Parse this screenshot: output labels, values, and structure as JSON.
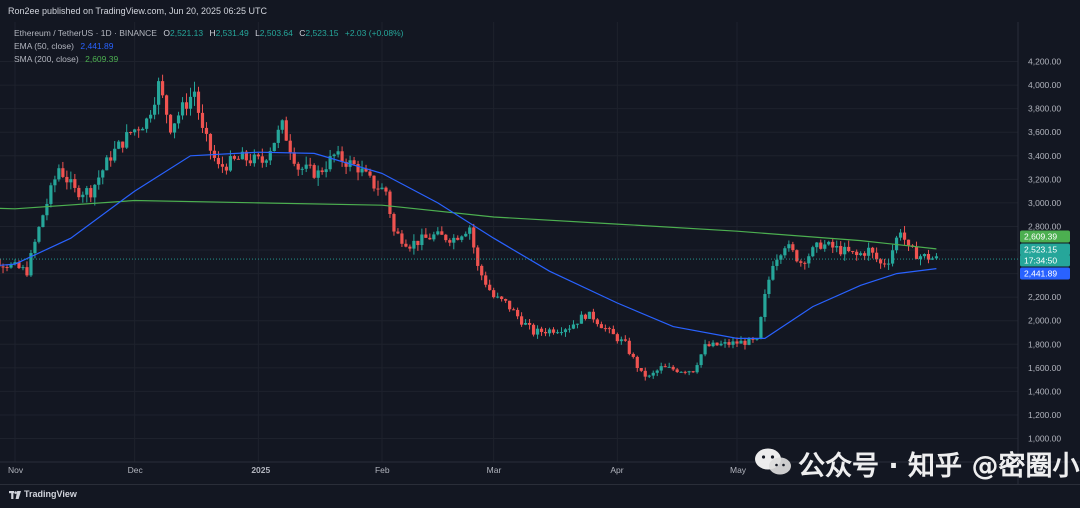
{
  "header": {
    "published": "Ron2ee published on TradingView.com, Jun 20, 2025 06:25 UTC"
  },
  "legend": {
    "symbol": "Ethereum / TetherUS · 1D · BINANCE",
    "o_label": "O",
    "o": "2,521.13",
    "h_label": "H",
    "h": "2,531.49",
    "l_label": "L",
    "l": "2,503.64",
    "c_label": "C",
    "c": "2,523.15",
    "change": "+2.03 (+0.08%)",
    "ema_label": "EMA (50, close)",
    "ema_value": "2,441.89",
    "sma_label": "SMA (200, close)",
    "sma_value": "2,609.39"
  },
  "footer": {
    "brand": "TradingView"
  },
  "watermark": {
    "text": "公众号 · 知乎 @密圈小Q"
  },
  "colors": {
    "up": "#26a69a",
    "down": "#ef5350",
    "ema": "#2962ff",
    "sma": "#4caf50",
    "background": "#131722"
  },
  "chart_data": {
    "type": "candlestick",
    "symbol": "ETH/USDT",
    "timeframe": "1D",
    "y_ticks": [
      1000,
      1200,
      1400,
      1600,
      1800,
      2000,
      2200,
      2400,
      2600,
      2800,
      3000,
      3200,
      3400,
      3600,
      3800,
      4000,
      4200
    ],
    "ylim": [
      980,
      4300
    ],
    "x_ticks": [
      {
        "label": "Nov",
        "date": "2024-11-01"
      },
      {
        "label": "Dec",
        "date": "2024-12-01"
      },
      {
        "label": "2025",
        "date": "2025-01-01"
      },
      {
        "label": "Feb",
        "date": "2025-02-01"
      },
      {
        "label": "Mar",
        "date": "2025-03-01"
      },
      {
        "label": "Apr",
        "date": "2025-04-01"
      },
      {
        "label": "May",
        "date": "2025-05-01"
      }
    ],
    "xlim": [
      "2024-11-01",
      "2025-06-20"
    ],
    "price_close_path": [
      [
        "2024-10-21",
        2650
      ],
      [
        "2024-10-28",
        2500
      ],
      [
        "2024-11-04",
        2420
      ],
      [
        "2024-11-08",
        2900
      ],
      [
        "2024-11-12",
        3300
      ],
      [
        "2024-11-16",
        3100
      ],
      [
        "2024-11-20",
        3100
      ],
      [
        "2024-11-25",
        3400
      ],
      [
        "2024-11-30",
        3600
      ],
      [
        "2024-12-04",
        3700
      ],
      [
        "2024-12-07",
        4000
      ],
      [
        "2024-12-10",
        3650
      ],
      [
        "2024-12-16",
        3950
      ],
      [
        "2024-12-18",
        3600
      ],
      [
        "2024-12-22",
        3300
      ],
      [
        "2024-12-28",
        3380
      ],
      [
        "2025-01-02",
        3350
      ],
      [
        "2025-01-07",
        3650
      ],
      [
        "2025-01-11",
        3300
      ],
      [
        "2025-01-16",
        3250
      ],
      [
        "2025-01-20",
        3400
      ],
      [
        "2025-01-26",
        3300
      ],
      [
        "2025-01-30",
        3150
      ],
      [
        "2025-02-02",
        3100
      ],
      [
        "2025-02-04",
        2750
      ],
      [
        "2025-02-08",
        2650
      ],
      [
        "2025-02-14",
        2720
      ],
      [
        "2025-02-19",
        2700
      ],
      [
        "2025-02-23",
        2800
      ],
      [
        "2025-02-25",
        2450
      ],
      [
        "2025-03-01",
        2200
      ],
      [
        "2025-03-04",
        2150
      ],
      [
        "2025-03-08",
        2000
      ],
      [
        "2025-03-11",
        1900
      ],
      [
        "2025-03-17",
        1930
      ],
      [
        "2025-03-20",
        1950
      ],
      [
        "2025-03-24",
        2050
      ],
      [
        "2025-03-26",
        2030
      ],
      [
        "2025-03-30",
        1900
      ],
      [
        "2025-04-03",
        1800
      ],
      [
        "2025-04-07",
        1550
      ],
      [
        "2025-04-09",
        1520
      ],
      [
        "2025-04-12",
        1600
      ],
      [
        "2025-04-17",
        1580
      ],
      [
        "2025-04-20",
        1580
      ],
      [
        "2025-04-23",
        1780
      ],
      [
        "2025-04-28",
        1800
      ],
      [
        "2025-05-03",
        1820
      ],
      [
        "2025-05-06",
        1820
      ],
      [
        "2025-05-08",
        2200
      ],
      [
        "2025-05-10",
        2500
      ],
      [
        "2025-05-13",
        2650
      ],
      [
        "2025-05-17",
        2500
      ],
      [
        "2025-05-22",
        2650
      ],
      [
        "2025-05-27",
        2600
      ],
      [
        "2025-05-31",
        2550
      ],
      [
        "2025-06-03",
        2600
      ],
      [
        "2025-06-06",
        2480
      ],
      [
        "2025-06-08",
        2520
      ],
      [
        "2025-06-11",
        2780
      ],
      [
        "2025-06-13",
        2600
      ],
      [
        "2025-06-16",
        2550
      ],
      [
        "2025-06-20",
        2523.15
      ]
    ],
    "ema_50": [
      [
        "2024-10-21",
        2450
      ],
      [
        "2024-11-01",
        2480
      ],
      [
        "2024-11-15",
        2700
      ],
      [
        "2024-12-01",
        3100
      ],
      [
        "2024-12-15",
        3400
      ],
      [
        "2025-01-01",
        3430
      ],
      [
        "2025-01-15",
        3420
      ],
      [
        "2025-02-01",
        3250
      ],
      [
        "2025-02-15",
        3000
      ],
      [
        "2025-03-01",
        2700
      ],
      [
        "2025-03-15",
        2420
      ],
      [
        "2025-04-01",
        2150
      ],
      [
        "2025-04-15",
        1950
      ],
      [
        "2025-05-01",
        1850
      ],
      [
        "2025-05-08",
        1850
      ],
      [
        "2025-05-20",
        2120
      ],
      [
        "2025-06-01",
        2300
      ],
      [
        "2025-06-10",
        2400
      ],
      [
        "2025-06-20",
        2441.89
      ]
    ],
    "sma_200": [
      [
        "2024-10-21",
        2960
      ],
      [
        "2024-11-01",
        2950
      ],
      [
        "2024-12-01",
        3020
      ],
      [
        "2025-01-01",
        3000
      ],
      [
        "2025-02-01",
        2980
      ],
      [
        "2025-03-01",
        2880
      ],
      [
        "2025-04-01",
        2820
      ],
      [
        "2025-05-01",
        2760
      ],
      [
        "2025-06-01",
        2680
      ],
      [
        "2025-06-20",
        2609.39
      ]
    ],
    "price_labels": [
      {
        "name": "sma",
        "value": "2,609.39",
        "color": "#4caf50",
        "price": 2609.39
      },
      {
        "name": "last",
        "value": "2,523.15",
        "color": "#26a69a",
        "price": 2523.15
      },
      {
        "name": "countdown",
        "value": "17:34:50",
        "color": "#26a69a"
      },
      {
        "name": "ema",
        "value": "2,441.89",
        "color": "#2962ff",
        "price": 2441.89
      }
    ]
  }
}
